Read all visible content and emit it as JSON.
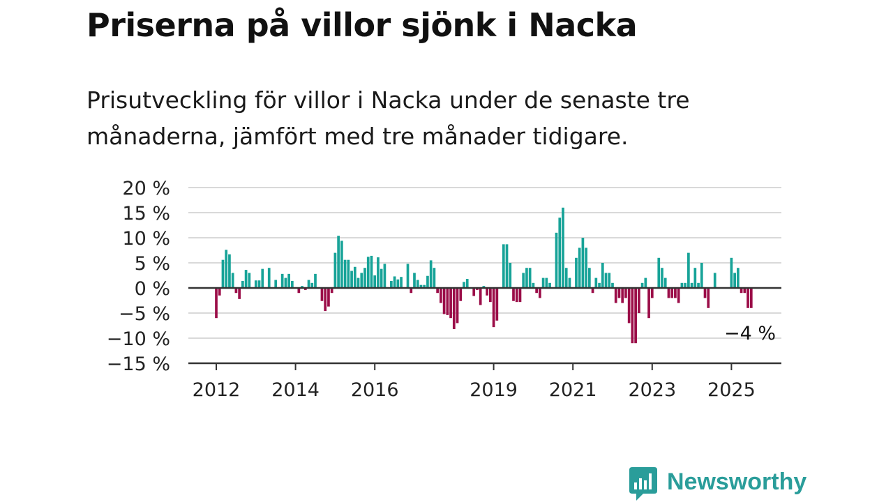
{
  "title": "Priserna på villor sjönk i Nacka",
  "subtitle": "Prisutveckling för villor i Nacka under de senaste tre månaderna, jämfört med tre månader tidigare.",
  "brand": {
    "name": "Newsworthy",
    "icon": "newsworthy-logo-icon",
    "color": "#2a9d9a"
  },
  "colors": {
    "positive": "#17a398",
    "negative": "#9b0d48",
    "grid": "#d9d9d9",
    "axis": "#333333"
  },
  "chart_data": {
    "type": "bar",
    "ylim": [
      -15,
      20
    ],
    "yticks": [
      20,
      15,
      10,
      5,
      0,
      -5,
      -10,
      -15
    ],
    "ytick_labels": [
      "20 %",
      "15 %",
      "10 %",
      "5 %",
      "0 %",
      "−5 %",
      "−10 %",
      "−15 %"
    ],
    "xticks": [
      "2012",
      "2014",
      "2016",
      "2019",
      "2021",
      "2023",
      "2025"
    ],
    "grid": true,
    "x_start": "2012-01",
    "x_frequency": "monthly",
    "annotation": "−4 %",
    "values": [
      -6,
      -1.5,
      5.6,
      7.6,
      6.7,
      3,
      -1,
      -2.2,
      1.4,
      3.6,
      3,
      0,
      1.5,
      1.5,
      3.8,
      0,
      4,
      0,
      1.6,
      0,
      2.8,
      2,
      2.8,
      1.4,
      0,
      -1,
      0.4,
      -0.4,
      1.6,
      1,
      2.8,
      0,
      -2.6,
      -4.6,
      -3.7,
      -1,
      7,
      10.4,
      9.4,
      5.6,
      5.6,
      3.4,
      4.2,
      2,
      3,
      4,
      6.2,
      6.4,
      2.5,
      6.1,
      3.8,
      4.8,
      0,
      1.4,
      2.3,
      1.7,
      2.2,
      0,
      4.8,
      -1,
      3,
      1.6,
      0.6,
      0.6,
      2.4,
      5.5,
      4,
      -1,
      -3,
      -5.2,
      -5.4,
      -6,
      -8.2,
      -7,
      -2.6,
      1.2,
      1.8,
      0,
      -1.6,
      -0.4,
      -3.4,
      0.4,
      -1.5,
      -2.8,
      -7.8,
      -6.5,
      0,
      8.7,
      8.7,
      5,
      -2.6,
      -2.8,
      -2.8,
      3,
      4,
      4,
      1,
      -1,
      -2,
      2,
      2,
      1,
      0,
      11,
      14,
      16,
      4,
      2,
      0,
      6,
      8,
      10,
      8,
      4,
      -1,
      2,
      1,
      5,
      3,
      3,
      1,
      -3,
      -2,
      -3,
      -2,
      -7,
      -11,
      -11,
      -5,
      1,
      2,
      -6,
      -2,
      0,
      6,
      4,
      2,
      -2,
      -2,
      -2,
      -3,
      1,
      1,
      7,
      1,
      4,
      1,
      5,
      -2,
      -4,
      0,
      3,
      0,
      0,
      0,
      0,
      6,
      3,
      4,
      -1,
      -1,
      -4,
      -4
    ]
  }
}
